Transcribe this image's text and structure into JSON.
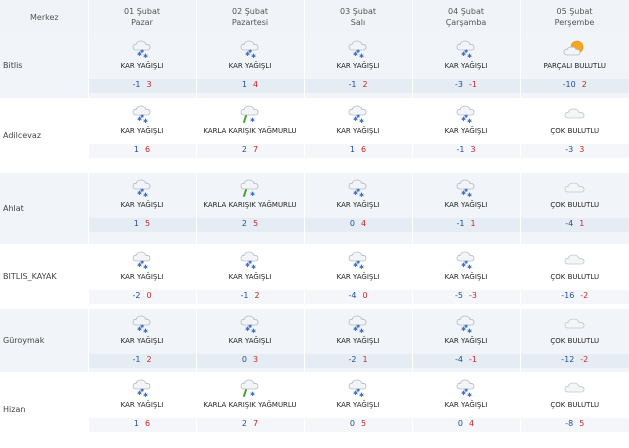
{
  "header": {
    "corner_label": "Merkez",
    "days": [
      {
        "date": "01 Şubat",
        "day": "Pazar"
      },
      {
        "date": "02 Şubat",
        "day": "Pazartesi"
      },
      {
        "date": "03 Şubat",
        "day": "Salı"
      },
      {
        "date": "04 Şubat",
        "day": "Çarşamba"
      },
      {
        "date": "05 Şubat",
        "day": "Perşembe"
      }
    ]
  },
  "rows": [
    {
      "city": "Bitlis",
      "cells": [
        {
          "icon": "snow-cloud-icon",
          "cond": "KAR YAĞIŞLI",
          "min": "-1",
          "max": "3"
        },
        {
          "icon": "snow-cloud-icon",
          "cond": "KAR YAĞIŞLI",
          "min": "1",
          "max": "4"
        },
        {
          "icon": "snow-cloud-icon",
          "cond": "KAR YAĞIŞLI",
          "min": "-1",
          "max": "2"
        },
        {
          "icon": "snow-cloud-icon",
          "cond": "KAR YAĞIŞLI",
          "min": "-3",
          "max": "-1"
        },
        {
          "icon": "partly-cloudy-sun-icon",
          "cond": "PARÇALI BULUTLU",
          "min": "-10",
          "max": "2"
        }
      ]
    },
    {
      "city": "Adilcevaz",
      "cells": [
        {
          "icon": "snow-cloud-icon",
          "cond": "KAR YAĞIŞLI",
          "min": "1",
          "max": "6"
        },
        {
          "icon": "sleet-cloud-icon",
          "cond": "KARLA KARIŞIK YAĞMURLU",
          "min": "2",
          "max": "7"
        },
        {
          "icon": "snow-cloud-icon",
          "cond": "KAR YAĞIŞLI",
          "min": "1",
          "max": "6"
        },
        {
          "icon": "snow-cloud-icon",
          "cond": "KAR YAĞIŞLI",
          "min": "-1",
          "max": "3"
        },
        {
          "icon": "cloudy-icon",
          "cond": "ÇOK BULUTLU",
          "min": "-3",
          "max": "3"
        }
      ]
    },
    {
      "city": "Ahlat",
      "cells": [
        {
          "icon": "snow-cloud-icon",
          "cond": "KAR YAĞIŞLI",
          "min": "1",
          "max": "5"
        },
        {
          "icon": "sleet-cloud-icon",
          "cond": "KARLA KARIŞIK YAĞMURLU",
          "min": "2",
          "max": "5"
        },
        {
          "icon": "snow-cloud-icon",
          "cond": "KAR YAĞIŞLI",
          "min": "0",
          "max": "4"
        },
        {
          "icon": "snow-cloud-icon",
          "cond": "KAR YAĞIŞLI",
          "min": "-1",
          "max": "1"
        },
        {
          "icon": "cloudy-icon",
          "cond": "ÇOK BULUTLU",
          "min": "-4",
          "max": "1"
        }
      ]
    },
    {
      "city": "BITLIS_KAYAK",
      "cells": [
        {
          "icon": "snow-cloud-icon",
          "cond": "KAR YAĞIŞLI",
          "min": "-2",
          "max": "0"
        },
        {
          "icon": "snow-cloud-icon",
          "cond": "KAR YAĞIŞLI",
          "min": "-1",
          "max": "2"
        },
        {
          "icon": "snow-cloud-icon",
          "cond": "KAR YAĞIŞLI",
          "min": "-4",
          "max": "0"
        },
        {
          "icon": "snow-cloud-icon",
          "cond": "KAR YAĞIŞLI",
          "min": "-5",
          "max": "-3"
        },
        {
          "icon": "cloudy-icon",
          "cond": "ÇOK BULUTLU",
          "min": "-16",
          "max": "-2"
        }
      ]
    },
    {
      "city": "Güroymak",
      "cells": [
        {
          "icon": "snow-cloud-icon",
          "cond": "KAR YAĞIŞLI",
          "min": "-1",
          "max": "2"
        },
        {
          "icon": "snow-cloud-icon",
          "cond": "KAR YAĞIŞLI",
          "min": "0",
          "max": "3"
        },
        {
          "icon": "snow-cloud-icon",
          "cond": "KAR YAĞIŞLI",
          "min": "-2",
          "max": "1"
        },
        {
          "icon": "snow-cloud-icon",
          "cond": "KAR YAĞIŞLI",
          "min": "-4",
          "max": "-1"
        },
        {
          "icon": "cloudy-icon",
          "cond": "ÇOK BULUTLU",
          "min": "-12",
          "max": "-2"
        }
      ]
    },
    {
      "city": "Hizan",
      "cells": [
        {
          "icon": "snow-cloud-icon",
          "cond": "KAR YAĞIŞLI",
          "min": "1",
          "max": "6"
        },
        {
          "icon": "sleet-cloud-icon",
          "cond": "KARLA KARIŞIK YAĞMURLU",
          "min": "2",
          "max": "7"
        },
        {
          "icon": "snow-cloud-icon",
          "cond": "KAR YAĞIŞLI",
          "min": "0",
          "max": "5"
        },
        {
          "icon": "snow-cloud-icon",
          "cond": "KAR YAĞIŞLI",
          "min": "0",
          "max": "4"
        },
        {
          "icon": "cloudy-icon",
          "cond": "ÇOK BULUTLU",
          "min": "-8",
          "max": "5"
        }
      ]
    }
  ],
  "colors": {
    "min_temp": "#1d4f9c",
    "max_temp": "#c22a2a",
    "header_bg": "#f0f3f7"
  }
}
